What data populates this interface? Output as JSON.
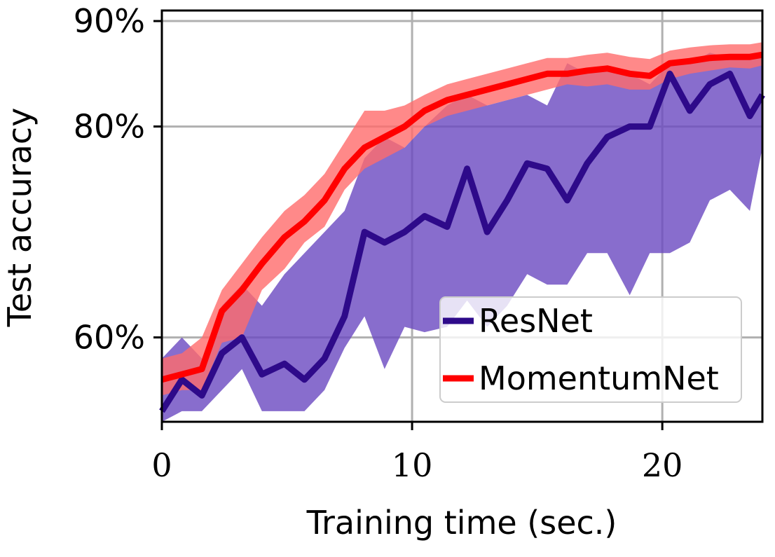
{
  "chart_data": {
    "type": "line",
    "title": "",
    "xlabel": "Training time (sec.)",
    "ylabel": "Test accuracy",
    "xlim": [
      0,
      24
    ],
    "ylim": [
      0.52,
      0.91
    ],
    "x_ticks": [
      {
        "value": 0,
        "label": "0"
      },
      {
        "value": 10,
        "label": "10"
      },
      {
        "value": 20,
        "label": "20"
      }
    ],
    "y_ticks": [
      {
        "value": 0.6,
        "label": "60%"
      },
      {
        "value": 0.8,
        "label": "80%"
      },
      {
        "value": 0.9,
        "label": "90%"
      }
    ],
    "grid": true,
    "legend_position": "bottom-right",
    "series": [
      {
        "name": "ResNet",
        "color": "#2e0a8a",
        "band_color": "#6a48c0",
        "x": [
          0,
          0.8,
          1.6,
          2.4,
          3.2,
          4.0,
          4.9,
          5.7,
          6.5,
          7.3,
          8.1,
          8.9,
          9.7,
          10.5,
          11.4,
          12.2,
          13.0,
          13.8,
          14.6,
          15.4,
          16.2,
          17.0,
          17.8,
          18.7,
          19.5,
          20.3,
          21.1,
          21.9,
          22.7,
          23.5,
          24.0
        ],
        "values": [
          0.53,
          0.56,
          0.545,
          0.585,
          0.6,
          0.565,
          0.575,
          0.56,
          0.58,
          0.62,
          0.7,
          0.69,
          0.7,
          0.715,
          0.705,
          0.76,
          0.7,
          0.73,
          0.765,
          0.76,
          0.73,
          0.765,
          0.79,
          0.8,
          0.8,
          0.85,
          0.815,
          0.84,
          0.85,
          0.81,
          0.83
        ],
        "lower": [
          0.52,
          0.53,
          0.53,
          0.55,
          0.57,
          0.53,
          0.53,
          0.53,
          0.55,
          0.59,
          0.62,
          0.57,
          0.61,
          0.605,
          0.61,
          0.635,
          0.61,
          0.63,
          0.66,
          0.65,
          0.65,
          0.68,
          0.68,
          0.64,
          0.68,
          0.68,
          0.69,
          0.73,
          0.74,
          0.72,
          0.78
        ],
        "upper": [
          0.58,
          0.6,
          0.58,
          0.63,
          0.65,
          0.63,
          0.66,
          0.68,
          0.7,
          0.72,
          0.77,
          0.79,
          0.78,
          0.8,
          0.82,
          0.83,
          0.82,
          0.825,
          0.83,
          0.82,
          0.86,
          0.85,
          0.855,
          0.85,
          0.84,
          0.86,
          0.86,
          0.87,
          0.865,
          0.865,
          0.87
        ]
      },
      {
        "name": "MomentumNet",
        "color": "#ff0000",
        "band_color": "#ff6b6b",
        "x": [
          0,
          0.8,
          1.6,
          2.4,
          3.2,
          4.0,
          4.9,
          5.7,
          6.5,
          7.3,
          8.1,
          8.9,
          9.7,
          10.5,
          11.4,
          12.2,
          13.0,
          13.8,
          14.6,
          15.4,
          16.2,
          17.0,
          17.8,
          18.7,
          19.5,
          20.3,
          21.1,
          21.9,
          22.7,
          23.5,
          24.0
        ],
        "values": [
          0.56,
          0.565,
          0.57,
          0.625,
          0.645,
          0.67,
          0.695,
          0.71,
          0.73,
          0.76,
          0.78,
          0.79,
          0.8,
          0.815,
          0.825,
          0.83,
          0.835,
          0.84,
          0.845,
          0.85,
          0.85,
          0.853,
          0.855,
          0.85,
          0.848,
          0.86,
          0.862,
          0.865,
          0.866,
          0.866,
          0.868
        ],
        "lower": [
          0.545,
          0.55,
          0.55,
          0.595,
          0.6,
          0.645,
          0.665,
          0.69,
          0.705,
          0.74,
          0.76,
          0.77,
          0.78,
          0.8,
          0.81,
          0.815,
          0.82,
          0.825,
          0.83,
          0.835,
          0.84,
          0.838,
          0.84,
          0.835,
          0.835,
          0.845,
          0.85,
          0.853,
          0.856,
          0.855,
          0.858
        ],
        "upper": [
          0.58,
          0.585,
          0.6,
          0.645,
          0.67,
          0.695,
          0.72,
          0.735,
          0.755,
          0.785,
          0.815,
          0.815,
          0.82,
          0.83,
          0.84,
          0.845,
          0.85,
          0.855,
          0.86,
          0.865,
          0.865,
          0.868,
          0.87,
          0.866,
          0.864,
          0.872,
          0.875,
          0.877,
          0.878,
          0.878,
          0.88
        ]
      }
    ]
  }
}
